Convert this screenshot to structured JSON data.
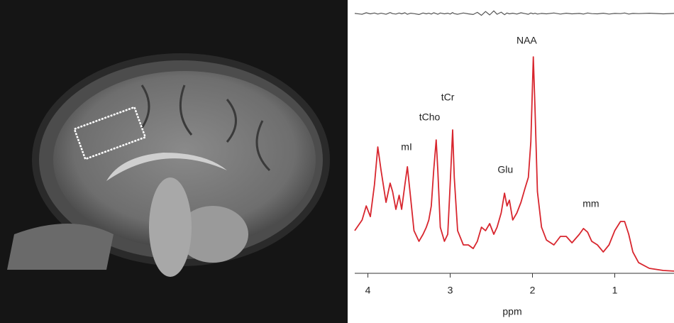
{
  "chart_data": {
    "type": "line",
    "xlabel": "ppm",
    "xlim": [
      4.16,
      0.28
    ],
    "xticks": [
      4,
      3,
      2,
      1
    ],
    "ylim": [
      0,
      128
    ],
    "x": [
      4.16,
      4.07,
      4.02,
      3.97,
      3.92,
      3.88,
      3.84,
      3.78,
      3.73,
      3.7,
      3.66,
      3.62,
      3.59,
      3.55,
      3.52,
      3.48,
      3.44,
      3.38,
      3.33,
      3.29,
      3.26,
      3.23,
      3.2,
      3.17,
      3.15,
      3.12,
      3.07,
      3.03,
      3.0,
      2.97,
      2.95,
      2.91,
      2.84,
      2.78,
      2.72,
      2.67,
      2.62,
      2.57,
      2.52,
      2.47,
      2.43,
      2.38,
      2.34,
      2.31,
      2.28,
      2.24,
      2.19,
      2.14,
      2.09,
      2.05,
      2.02,
      1.99,
      1.97,
      1.94,
      1.89,
      1.83,
      1.74,
      1.66,
      1.59,
      1.52,
      1.43,
      1.38,
      1.33,
      1.28,
      1.21,
      1.14,
      1.07,
      1.0,
      0.93,
      0.88,
      0.83,
      0.78,
      0.71,
      0.58,
      0.41,
      0.28
    ],
    "series": [
      {
        "color": "#d8262e",
        "values": [
          19.7,
          24.7,
          31.3,
          26.3,
          41.3,
          59,
          48,
          33,
          42,
          38,
          29.7,
          36.3,
          29.7,
          41.3,
          49.7,
          34.7,
          19.7,
          14.7,
          18,
          21.3,
          24.7,
          31.3,
          48,
          62.3,
          48,
          21.3,
          14.7,
          18,
          41.3,
          67,
          44.7,
          19.7,
          13,
          13,
          11.3,
          14.7,
          21.3,
          19.7,
          23,
          18,
          21.3,
          28,
          37.3,
          31.3,
          34,
          24.7,
          28,
          33,
          39.7,
          44.7,
          61.3,
          101.3,
          78,
          38,
          21.3,
          15.3,
          13,
          17,
          17,
          14,
          18,
          20.7,
          19,
          14.7,
          13,
          9.7,
          13,
          19.7,
          24,
          24,
          18,
          9.7,
          4.7,
          2,
          1,
          0.7
        ]
      },
      {
        "color": "#555555",
        "values": [
          121.7,
          121.3,
          122.0,
          121.5,
          121.9,
          121.4,
          121.8,
          121.3,
          122.1,
          121.6,
          121.4,
          121.9,
          121.5,
          122.0,
          121.3,
          121.8,
          121.6,
          121.2,
          121.9,
          121.5,
          121.8,
          121.4,
          122.0,
          121.6,
          121.3,
          121.9,
          121.5,
          121.8,
          121.4,
          122.1,
          121.6,
          121.3,
          121.9,
          121.5,
          121.2,
          122.2,
          120.8,
          122.6,
          121.0,
          122.9,
          121.3,
          122.3,
          121.1,
          121.9,
          121.5,
          121.8,
          121.4,
          122.0,
          121.6,
          121.3,
          121.9,
          121.5,
          121.8,
          121.4,
          121.7,
          121.5,
          121.9,
          121.4,
          121.8,
          121.5,
          121.7,
          121.4,
          121.9,
          121.6,
          121.5,
          121.8,
          121.4,
          121.7,
          121.6,
          121.9,
          121.4,
          121.7,
          121.6,
          121.8,
          121.5,
          121.7
        ]
      }
    ],
    "annotations": [
      {
        "text": "NAA",
        "x": 2.07,
        "y": 108.7
      },
      {
        "text": "tCr",
        "x": 3.03,
        "y": 82
      },
      {
        "text": "tCho",
        "x": 3.25,
        "y": 72.7
      },
      {
        "text": "mI",
        "x": 3.53,
        "y": 58.7
      },
      {
        "text": "Glu",
        "x": 2.33,
        "y": 48
      },
      {
        "text": "mm",
        "x": 1.29,
        "y": 32
      }
    ]
  }
}
